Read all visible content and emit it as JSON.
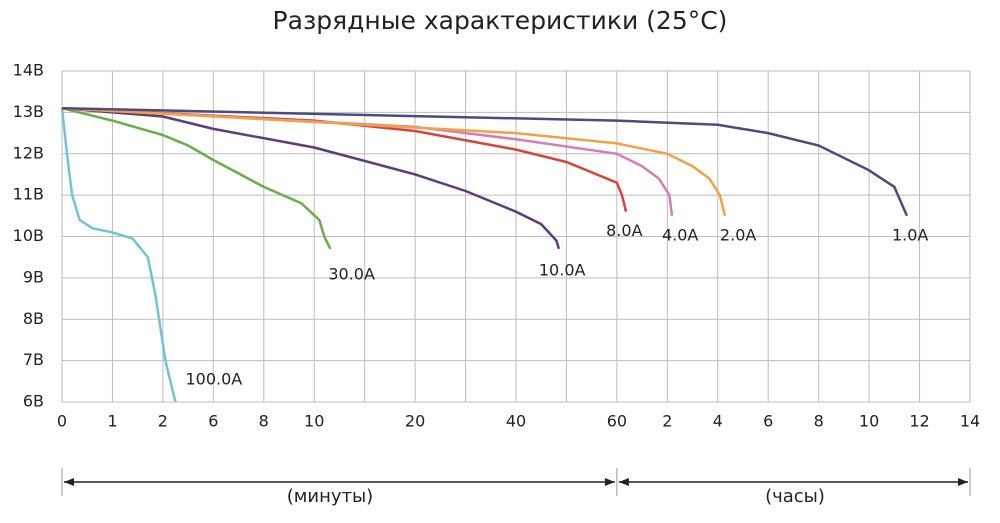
{
  "chart_data": {
    "type": "line",
    "title": "Разрядные характеристики (25°C)",
    "x_annotations": [
      "(минуты)",
      "(часы)"
    ],
    "xlim": [
      0,
      840
    ],
    "xticks": [
      0,
      1,
      2,
      6,
      8,
      10,
      20,
      40,
      60,
      {
        "value": 120,
        "label": "2"
      },
      {
        "value": 240,
        "label": "4"
      },
      {
        "value": 360,
        "label": "6"
      },
      {
        "value": 480,
        "label": "8"
      },
      {
        "value": 600,
        "label": "10"
      },
      {
        "value": 720,
        "label": "12"
      },
      {
        "value": 840,
        "label": "14"
      }
    ],
    "xgrid_minor": [
      15,
      30,
      50
    ],
    "ylim": [
      6,
      14
    ],
    "yticks": [
      {
        "value": 6,
        "label": "6В"
      },
      {
        "value": 7,
        "label": "7В"
      },
      {
        "value": 8,
        "label": "8В"
      },
      {
        "value": 9,
        "label": "9В"
      },
      {
        "value": 10,
        "label": "10В"
      },
      {
        "value": 11,
        "label": "11В"
      },
      {
        "value": 12,
        "label": "12В"
      },
      {
        "value": 13,
        "label": "13В"
      },
      {
        "value": 14,
        "label": "14В"
      }
    ],
    "grid": true,
    "series": [
      {
        "name": "100.0A",
        "color": "#72c2da",
        "x": [
          0,
          0.1,
          0.2,
          0.35,
          0.6,
          1,
          1.4,
          1.7,
          1.85,
          1.95,
          2.2,
          3.0
        ],
        "values": [
          13.1,
          12.0,
          11.0,
          10.4,
          10.2,
          10.1,
          9.95,
          9.5,
          8.6,
          7.8,
          7.0,
          6.0
        ]
      },
      {
        "name": "30.0A",
        "color": "#6aae4a",
        "x": [
          0,
          1,
          2,
          4,
          6,
          8,
          9.5,
          10.5,
          11,
          11.6
        ],
        "values": [
          13.1,
          12.8,
          12.45,
          12.2,
          11.85,
          11.2,
          10.8,
          10.4,
          10.0,
          9.7
        ]
      },
      {
        "name": "10.0A",
        "color": "#5e3b7c",
        "x": [
          0,
          2,
          6,
          10,
          20,
          30,
          40,
          45,
          48,
          48.5
        ],
        "values": [
          13.1,
          12.9,
          12.6,
          12.15,
          11.5,
          11.1,
          10.6,
          10.3,
          9.9,
          9.7
        ]
      },
      {
        "name": "8.0A",
        "color": "#d8433a",
        "x": [
          0,
          10,
          20,
          40,
          50,
          60,
          66,
          71
        ],
        "values": [
          13.1,
          12.8,
          12.55,
          12.1,
          11.8,
          11.3,
          11.0,
          10.6
        ]
      },
      {
        "name": "4.0A",
        "color": "#d57db6",
        "x": [
          0,
          20,
          40,
          60,
          90,
          110,
          125,
          131
        ],
        "values": [
          13.1,
          12.65,
          12.35,
          12.0,
          11.7,
          11.4,
          11.0,
          10.5
        ]
      },
      {
        "name": "2.0A",
        "color": "#f0a244",
        "x": [
          0,
          40,
          60,
          120,
          180,
          220,
          245,
          257
        ],
        "values": [
          13.1,
          12.5,
          12.25,
          12.0,
          11.7,
          11.4,
          11.0,
          10.5
        ]
      },
      {
        "name": "1.0A",
        "color": "#4b4b82",
        "x": [
          0,
          60,
          240,
          360,
          480,
          600,
          660,
          690
        ],
        "values": [
          13.1,
          12.8,
          12.7,
          12.5,
          12.2,
          11.6,
          11.2,
          10.5
        ]
      }
    ]
  }
}
